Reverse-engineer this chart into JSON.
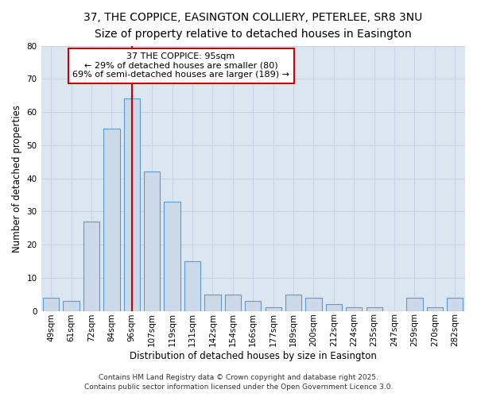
{
  "title_line1": "37, THE COPPICE, EASINGTON COLLIERY, PETERLEE, SR8 3NU",
  "title_line2": "Size of property relative to detached houses in Easington",
  "xlabel": "Distribution of detached houses by size in Easington",
  "ylabel": "Number of detached properties",
  "categories": [
    "49sqm",
    "61sqm",
    "72sqm",
    "84sqm",
    "96sqm",
    "107sqm",
    "119sqm",
    "131sqm",
    "142sqm",
    "154sqm",
    "166sqm",
    "177sqm",
    "189sqm",
    "200sqm",
    "212sqm",
    "224sqm",
    "235sqm",
    "247sqm",
    "259sqm",
    "270sqm",
    "282sqm"
  ],
  "values": [
    4,
    3,
    27,
    55,
    64,
    42,
    33,
    15,
    5,
    5,
    3,
    1,
    5,
    4,
    2,
    1,
    1,
    0,
    4,
    1,
    4
  ],
  "bar_color": "#ccd9e8",
  "bar_edge_color": "#5b9bd5",
  "property_index": 4,
  "annotation_line1": "37 THE COPPICE: 95sqm",
  "annotation_line2": "← 29% of detached houses are smaller (80)",
  "annotation_line3": "69% of semi-detached houses are larger (189) →",
  "red_line_color": "#cc0000",
  "annotation_box_facecolor": "#ffffff",
  "annotation_box_edgecolor": "#cc0000",
  "grid_color": "#c8d4e4",
  "plot_bg_color": "#dce6f0",
  "fig_bg_color": "#ffffff",
  "ylim": [
    0,
    80
  ],
  "yticks": [
    0,
    10,
    20,
    30,
    40,
    50,
    60,
    70,
    80
  ],
  "title_fontsize": 10,
  "subtitle_fontsize": 9,
  "axis_label_fontsize": 8.5,
  "tick_fontsize": 7.5,
  "annotation_fontsize": 8,
  "footer_fontsize": 6.5,
  "footer_line1": "Contains HM Land Registry data © Crown copyright and database right 2025.",
  "footer_line2": "Contains public sector information licensed under the Open Government Licence 3.0."
}
